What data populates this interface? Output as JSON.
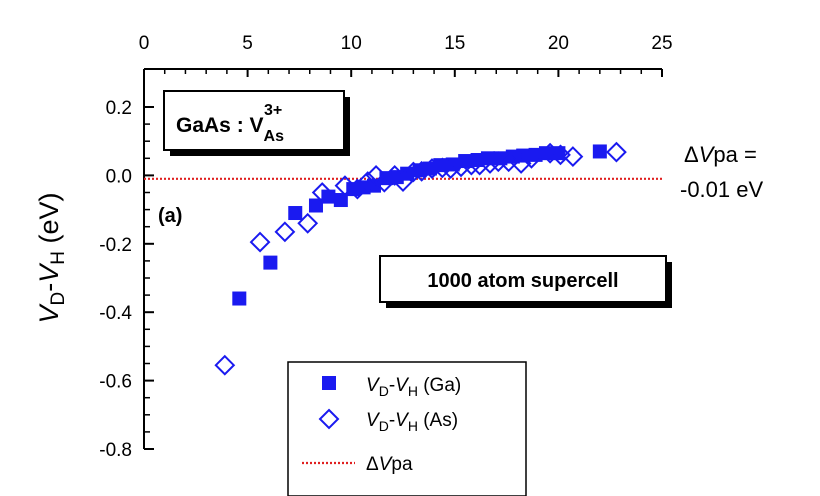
{
  "chart_data": {
    "type": "scatter",
    "x_range": [
      0,
      25
    ],
    "x_ticks": [
      "0",
      "5",
      "10",
      "15",
      "20",
      "25"
    ],
    "x_axis_position": "top",
    "y_range": [
      -0.8,
      0.25
    ],
    "y_ticks": [
      "0.2",
      "0.0",
      "-0.2",
      "-0.4",
      "-0.6",
      "-0.8"
    ],
    "y_tick_values": [
      0.2,
      0.0,
      -0.2,
      -0.4,
      -0.6,
      -0.8
    ],
    "ylabel": {
      "v1": "V",
      "s1": "D",
      "sep": "-",
      "v2": "V",
      "s2": "H",
      "unit": " (eV)"
    },
    "reference_line": {
      "y": -0.01,
      "color": "#e02020",
      "style": "dotted"
    },
    "series": [
      {
        "name": {
          "v1": "V",
          "s1": "D",
          "sep": "-",
          "v2": "V",
          "s2": "H",
          "rest": " (Ga)"
        },
        "marker": "filled-square",
        "color": "#1a1af0",
        "points": [
          [
            4.6,
            -0.36
          ],
          [
            6.1,
            -0.255
          ],
          [
            7.3,
            -0.11
          ],
          [
            8.3,
            -0.088
          ],
          [
            8.9,
            -0.062
          ],
          [
            9.5,
            -0.072
          ],
          [
            10.1,
            -0.04
          ],
          [
            10.6,
            -0.035
          ],
          [
            11.1,
            -0.03
          ],
          [
            11.7,
            -0.008
          ],
          [
            12.2,
            -0.005
          ],
          [
            12.7,
            0.005
          ],
          [
            13.3,
            0.015
          ],
          [
            13.8,
            0.02
          ],
          [
            14.3,
            0.03
          ],
          [
            14.9,
            0.032
          ],
          [
            15.5,
            0.042
          ],
          [
            16.1,
            0.045
          ],
          [
            16.6,
            0.05
          ],
          [
            17.2,
            0.05
          ],
          [
            17.8,
            0.055
          ],
          [
            18.3,
            0.058
          ],
          [
            18.9,
            0.06
          ],
          [
            19.4,
            0.065
          ],
          [
            20.0,
            0.065
          ],
          [
            22.0,
            0.07
          ]
        ]
      },
      {
        "name": {
          "v1": "V",
          "s1": "D",
          "sep": "-",
          "v2": "V",
          "s2": "H",
          "rest": " (As)"
        },
        "marker": "open-diamond",
        "color": "#1a1af0",
        "points": [
          [
            3.9,
            -0.555
          ],
          [
            5.6,
            -0.195
          ],
          [
            6.8,
            -0.165
          ],
          [
            7.9,
            -0.14
          ],
          [
            8.6,
            -0.05
          ],
          [
            9.7,
            -0.03
          ],
          [
            10.3,
            -0.04
          ],
          [
            10.8,
            -0.018
          ],
          [
            11.2,
            0.0
          ],
          [
            11.6,
            -0.02
          ],
          [
            12.1,
            0.0
          ],
          [
            12.5,
            -0.018
          ],
          [
            13.0,
            0.01
          ],
          [
            13.4,
            0.012
          ],
          [
            13.9,
            0.02
          ],
          [
            14.4,
            0.022
          ],
          [
            14.8,
            0.02
          ],
          [
            15.3,
            0.025
          ],
          [
            15.8,
            0.03
          ],
          [
            16.2,
            0.03
          ],
          [
            16.7,
            0.035
          ],
          [
            17.1,
            0.04
          ],
          [
            17.6,
            0.04
          ],
          [
            18.2,
            0.035
          ],
          [
            18.7,
            0.05
          ],
          [
            19.6,
            0.065
          ],
          [
            20.1,
            0.06
          ],
          [
            20.7,
            0.055
          ],
          [
            22.8,
            0.068
          ]
        ]
      }
    ],
    "legend_ref_label": {
      "delta": "Δ",
      "v": "V",
      "rest": "pa"
    },
    "annotations": {
      "box1": {
        "main": "GaAs : V",
        "sub": "As",
        "sup": "3+"
      },
      "panel_label": "(a)",
      "box2": "1000 atom supercell",
      "delta_line1": {
        "delta": "Δ",
        "v": "V",
        "rest": "pa ="
      },
      "delta_line2": "-0.01 eV"
    }
  }
}
